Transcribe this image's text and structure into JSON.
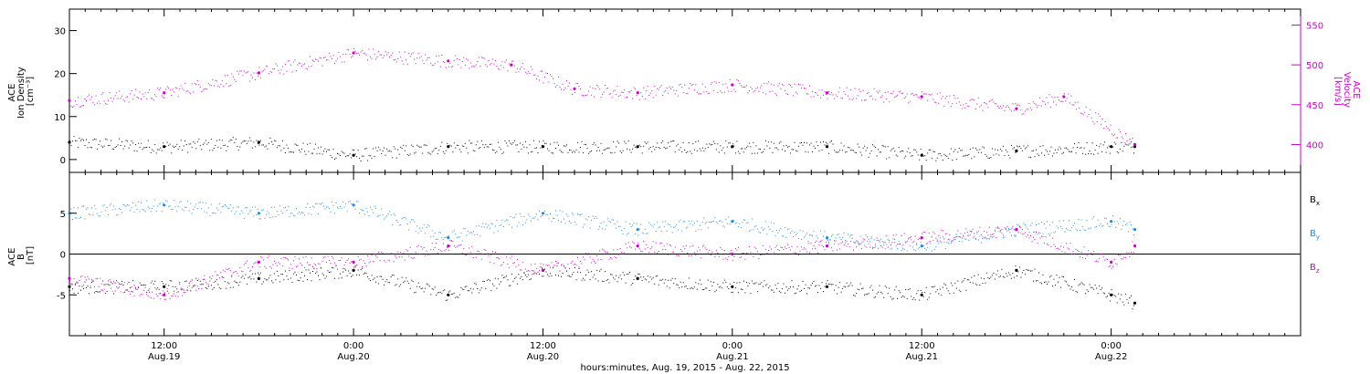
{
  "colors": {
    "black": "#000000",
    "magenta": "#cc00cc",
    "blue": "#1e8ce6",
    "background": "#ffffff"
  },
  "time_axis": {
    "start": "2015-08-19T06:00",
    "end": "2015-08-22T12:00",
    "title": "hours:minutes, Aug. 19, 2015 - Aug. 22, 2015",
    "ticks": [
      {
        "t": "2015-08-19T12:00",
        "time": "12:00",
        "date": "Aug.19"
      },
      {
        "t": "2015-08-20T00:00",
        "time": "0:00",
        "date": "Aug.20"
      },
      {
        "t": "2015-08-20T12:00",
        "time": "12:00",
        "date": "Aug.20"
      },
      {
        "t": "2015-08-21T00:00",
        "time": "0:00",
        "date": "Aug.21"
      },
      {
        "t": "2015-08-21T12:00",
        "time": "12:00",
        "date": "Aug.21"
      },
      {
        "t": "2015-08-22T00:00",
        "time": "0:00",
        "date": "Aug.22"
      }
    ]
  },
  "chart_data": [
    {
      "type": "scatter",
      "ylabel_lines": [
        "ACE",
        "Ion Density",
        "[cm⁻³]"
      ],
      "y2label_lines": [
        "ACE",
        "Velocity",
        "[km/s]"
      ],
      "ylim": [
        -3,
        35
      ],
      "yticks": [
        0,
        10,
        20,
        30
      ],
      "y2lim": [
        365,
        570
      ],
      "y2ticks": [
        400,
        450,
        500,
        550
      ],
      "series": [
        {
          "key": "density",
          "axis": "left",
          "color": "#000000",
          "x": [
            "2015-08-19T06:00",
            "2015-08-19T12:00",
            "2015-08-19T18:00",
            "2015-08-20T00:00",
            "2015-08-20T06:00",
            "2015-08-20T12:00",
            "2015-08-20T18:00",
            "2015-08-21T00:00",
            "2015-08-21T06:00",
            "2015-08-21T12:00",
            "2015-08-21T18:00",
            "2015-08-22T00:00",
            "2015-08-22T01:30"
          ],
          "y": [
            4,
            3,
            4,
            1,
            3,
            3,
            3,
            3,
            3,
            1,
            2,
            3,
            3
          ]
        },
        {
          "key": "velocity",
          "axis": "right",
          "color": "#cc00cc",
          "x": [
            "2015-08-19T06:00",
            "2015-08-19T12:00",
            "2015-08-19T18:00",
            "2015-08-20T00:00",
            "2015-08-20T06:00",
            "2015-08-20T10:00",
            "2015-08-20T14:00",
            "2015-08-20T18:00",
            "2015-08-21T00:00",
            "2015-08-21T06:00",
            "2015-08-21T12:00",
            "2015-08-21T18:00",
            "2015-08-21T21:00",
            "2015-08-22T01:30"
          ],
          "y": [
            455,
            465,
            490,
            515,
            505,
            500,
            470,
            465,
            475,
            465,
            460,
            445,
            460,
            400
          ]
        }
      ]
    },
    {
      "type": "scatter",
      "ylabel_lines": [
        "ACE",
        "B",
        "[nT]"
      ],
      "ylim": [
        -10,
        10
      ],
      "yticks": [
        -5,
        0,
        5
      ],
      "zero_line": true,
      "legend_position": "right",
      "series": [
        {
          "key": "bx",
          "name": "Bx",
          "label_main": "B",
          "label_sub": "x",
          "color": "#000000",
          "x": [
            "2015-08-19T06:00",
            "2015-08-19T12:00",
            "2015-08-19T18:00",
            "2015-08-20T00:00",
            "2015-08-20T06:00",
            "2015-08-20T12:00",
            "2015-08-20T18:00",
            "2015-08-21T00:00",
            "2015-08-21T06:00",
            "2015-08-21T12:00",
            "2015-08-21T18:00",
            "2015-08-22T00:00",
            "2015-08-22T01:30"
          ],
          "y": [
            -4,
            -4,
            -3,
            -2,
            -5,
            -2,
            -3,
            -4,
            -4,
            -5,
            -2,
            -5,
            -6
          ]
        },
        {
          "key": "by",
          "name": "By",
          "label_main": "B",
          "label_sub": "y",
          "color": "#1e8ce6",
          "x": [
            "2015-08-19T06:00",
            "2015-08-19T12:00",
            "2015-08-19T18:00",
            "2015-08-20T00:00",
            "2015-08-20T06:00",
            "2015-08-20T12:00",
            "2015-08-20T18:00",
            "2015-08-21T00:00",
            "2015-08-21T06:00",
            "2015-08-21T12:00",
            "2015-08-21T18:00",
            "2015-08-22T00:00",
            "2015-08-22T01:30"
          ],
          "y": [
            5,
            6,
            5,
            6,
            2,
            5,
            3,
            4,
            2,
            1,
            3,
            4,
            3
          ]
        },
        {
          "key": "bz",
          "name": "Bz",
          "label_main": "B",
          "label_sub": "z",
          "color": "#cc00cc",
          "x": [
            "2015-08-19T06:00",
            "2015-08-19T12:00",
            "2015-08-19T18:00",
            "2015-08-20T00:00",
            "2015-08-20T06:00",
            "2015-08-20T12:00",
            "2015-08-20T18:00",
            "2015-08-21T00:00",
            "2015-08-21T06:00",
            "2015-08-21T12:00",
            "2015-08-21T18:00",
            "2015-08-22T00:00",
            "2015-08-22T01:30"
          ],
          "y": [
            -3,
            -5,
            -1,
            -1,
            1,
            -2,
            1,
            0,
            1,
            2,
            3,
            -1,
            1
          ]
        }
      ]
    }
  ]
}
